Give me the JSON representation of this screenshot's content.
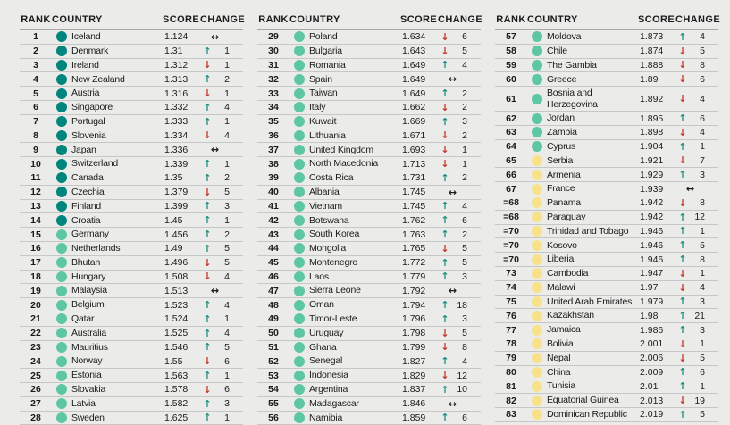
{
  "page": {
    "background_color": "#ebebe9",
    "text_color": "#1b1b1b"
  },
  "table": {
    "headers": {
      "rank": "RANK",
      "country": "COUNTRY",
      "score": "SCORE",
      "change": "CHANGE"
    },
    "tier_colors": {
      "high": "#00857c",
      "medium": "#5dc6a2",
      "low": "#f8e289"
    },
    "change_icons": {
      "up": {
        "name": "up-arrow-icon",
        "glyph": "↑",
        "color": "#1e8e82"
      },
      "down": {
        "name": "down-arrow-icon",
        "glyph": "↓",
        "color": "#c2372c"
      },
      "same": {
        "name": "no-change-icon",
        "glyph": "↔",
        "color": "#1b1b1b"
      }
    }
  },
  "columns": [
    {
      "rows": [
        {
          "rank": "1",
          "country": "Iceland",
          "score": "1.124",
          "tier": "high",
          "change": {
            "dir": "same",
            "value": null
          }
        },
        {
          "rank": "2",
          "country": "Denmark",
          "score": "1.31",
          "tier": "high",
          "change": {
            "dir": "up",
            "value": "1"
          }
        },
        {
          "rank": "3",
          "country": "Ireland",
          "score": "1.312",
          "tier": "high",
          "change": {
            "dir": "down",
            "value": "1"
          }
        },
        {
          "rank": "4",
          "country": "New Zealand",
          "score": "1.313",
          "tier": "high",
          "change": {
            "dir": "up",
            "value": "2"
          }
        },
        {
          "rank": "5",
          "country": "Austria",
          "score": "1.316",
          "tier": "high",
          "change": {
            "dir": "down",
            "value": "1"
          }
        },
        {
          "rank": "6",
          "country": "Singapore",
          "score": "1.332",
          "tier": "high",
          "change": {
            "dir": "up",
            "value": "4"
          }
        },
        {
          "rank": "7",
          "country": "Portugal",
          "score": "1.333",
          "tier": "high",
          "change": {
            "dir": "up",
            "value": "1"
          }
        },
        {
          "rank": "8",
          "country": "Slovenia",
          "score": "1.334",
          "tier": "high",
          "change": {
            "dir": "down",
            "value": "4"
          }
        },
        {
          "rank": "9",
          "country": "Japan",
          "score": "1.336",
          "tier": "high",
          "change": {
            "dir": "same",
            "value": null
          }
        },
        {
          "rank": "10",
          "country": "Switzerland",
          "score": "1.339",
          "tier": "high",
          "change": {
            "dir": "up",
            "value": "1"
          }
        },
        {
          "rank": "11",
          "country": "Canada",
          "score": "1.35",
          "tier": "high",
          "change": {
            "dir": "up",
            "value": "2"
          }
        },
        {
          "rank": "12",
          "country": "Czechia",
          "score": "1.379",
          "tier": "high",
          "change": {
            "dir": "down",
            "value": "5"
          }
        },
        {
          "rank": "13",
          "country": "Finland",
          "score": "1.399",
          "tier": "high",
          "change": {
            "dir": "up",
            "value": "3"
          }
        },
        {
          "rank": "14",
          "country": "Croatia",
          "score": "1.45",
          "tier": "high",
          "change": {
            "dir": "up",
            "value": "1"
          }
        },
        {
          "rank": "15",
          "country": "Germany",
          "score": "1.456",
          "tier": "medium",
          "change": {
            "dir": "up",
            "value": "2"
          }
        },
        {
          "rank": "16",
          "country": "Netherlands",
          "score": "1.49",
          "tier": "medium",
          "change": {
            "dir": "up",
            "value": "5"
          }
        },
        {
          "rank": "17",
          "country": "Bhutan",
          "score": "1.496",
          "tier": "medium",
          "change": {
            "dir": "down",
            "value": "5"
          }
        },
        {
          "rank": "18",
          "country": "Hungary",
          "score": "1.508",
          "tier": "medium",
          "change": {
            "dir": "down",
            "value": "4"
          }
        },
        {
          "rank": "19",
          "country": "Malaysia",
          "score": "1.513",
          "tier": "medium",
          "change": {
            "dir": "same",
            "value": null
          }
        },
        {
          "rank": "20",
          "country": "Belgium",
          "score": "1.523",
          "tier": "medium",
          "change": {
            "dir": "up",
            "value": "4"
          }
        },
        {
          "rank": "21",
          "country": "Qatar",
          "score": "1.524",
          "tier": "medium",
          "change": {
            "dir": "up",
            "value": "1"
          }
        },
        {
          "rank": "22",
          "country": "Australia",
          "score": "1.525",
          "tier": "medium",
          "change": {
            "dir": "up",
            "value": "4"
          }
        },
        {
          "rank": "23",
          "country": "Mauritius",
          "score": "1.546",
          "tier": "medium",
          "change": {
            "dir": "up",
            "value": "5"
          }
        },
        {
          "rank": "24",
          "country": "Norway",
          "score": "1.55",
          "tier": "medium",
          "change": {
            "dir": "down",
            "value": "6"
          }
        },
        {
          "rank": "25",
          "country": "Estonia",
          "score": "1.563",
          "tier": "medium",
          "change": {
            "dir": "up",
            "value": "1"
          }
        },
        {
          "rank": "26",
          "country": "Slovakia",
          "score": "1.578",
          "tier": "medium",
          "change": {
            "dir": "down",
            "value": "6"
          }
        },
        {
          "rank": "27",
          "country": "Latvia",
          "score": "1.582",
          "tier": "medium",
          "change": {
            "dir": "up",
            "value": "3"
          }
        },
        {
          "rank": "28",
          "country": "Sweden",
          "score": "1.625",
          "tier": "medium",
          "change": {
            "dir": "up",
            "value": "1"
          }
        }
      ]
    },
    {
      "rows": [
        {
          "rank": "29",
          "country": "Poland",
          "score": "1.634",
          "tier": "medium",
          "change": {
            "dir": "down",
            "value": "6"
          }
        },
        {
          "rank": "30",
          "country": "Bulgaria",
          "score": "1.643",
          "tier": "medium",
          "change": {
            "dir": "down",
            "value": "5"
          }
        },
        {
          "rank": "31",
          "country": "Romania",
          "score": "1.649",
          "tier": "medium",
          "change": {
            "dir": "up",
            "value": "4"
          }
        },
        {
          "rank": "32",
          "country": "Spain",
          "score": "1.649",
          "tier": "medium",
          "change": {
            "dir": "same",
            "value": null
          }
        },
        {
          "rank": "33",
          "country": "Taiwan",
          "score": "1.649",
          "tier": "medium",
          "change": {
            "dir": "up",
            "value": "2"
          }
        },
        {
          "rank": "34",
          "country": "Italy",
          "score": "1.662",
          "tier": "medium",
          "change": {
            "dir": "down",
            "value": "2"
          }
        },
        {
          "rank": "35",
          "country": "Kuwait",
          "score": "1.669",
          "tier": "medium",
          "change": {
            "dir": "up",
            "value": "3"
          }
        },
        {
          "rank": "36",
          "country": "Lithuania",
          "score": "1.671",
          "tier": "medium",
          "change": {
            "dir": "down",
            "value": "2"
          }
        },
        {
          "rank": "37",
          "country": "United Kingdom",
          "score": "1.693",
          "tier": "medium",
          "change": {
            "dir": "down",
            "value": "1"
          }
        },
        {
          "rank": "38",
          "country": "North Macedonia",
          "score": "1.713",
          "tier": "medium",
          "change": {
            "dir": "down",
            "value": "1"
          }
        },
        {
          "rank": "39",
          "country": "Costa Rica",
          "score": "1.731",
          "tier": "medium",
          "change": {
            "dir": "up",
            "value": "2"
          }
        },
        {
          "rank": "40",
          "country": "Albania",
          "score": "1.745",
          "tier": "medium",
          "change": {
            "dir": "same",
            "value": null
          }
        },
        {
          "rank": "41",
          "country": "Vietnam",
          "score": "1.745",
          "tier": "medium",
          "change": {
            "dir": "up",
            "value": "4"
          }
        },
        {
          "rank": "42",
          "country": "Botswana",
          "score": "1.762",
          "tier": "medium",
          "change": {
            "dir": "up",
            "value": "6"
          }
        },
        {
          "rank": "43",
          "country": "South Korea",
          "score": "1.763",
          "tier": "medium",
          "change": {
            "dir": "up",
            "value": "2"
          }
        },
        {
          "rank": "44",
          "country": "Mongolia",
          "score": "1.765",
          "tier": "medium",
          "change": {
            "dir": "down",
            "value": "5"
          }
        },
        {
          "rank": "45",
          "country": "Montenegro",
          "score": "1.772",
          "tier": "medium",
          "change": {
            "dir": "up",
            "value": "5"
          }
        },
        {
          "rank": "46",
          "country": "Laos",
          "score": "1.779",
          "tier": "medium",
          "change": {
            "dir": "up",
            "value": "3"
          }
        },
        {
          "rank": "47",
          "country": "Sierra Leone",
          "score": "1.792",
          "tier": "medium",
          "change": {
            "dir": "same",
            "value": null
          }
        },
        {
          "rank": "48",
          "country": "Oman",
          "score": "1.794",
          "tier": "medium",
          "change": {
            "dir": "up",
            "value": "18"
          }
        },
        {
          "rank": "49",
          "country": "Timor-Leste",
          "score": "1.796",
          "tier": "medium",
          "change": {
            "dir": "up",
            "value": "3"
          }
        },
        {
          "rank": "50",
          "country": "Uruguay",
          "score": "1.798",
          "tier": "medium",
          "change": {
            "dir": "down",
            "value": "5"
          }
        },
        {
          "rank": "51",
          "country": "Ghana",
          "score": "1.799",
          "tier": "medium",
          "change": {
            "dir": "down",
            "value": "8"
          }
        },
        {
          "rank": "52",
          "country": "Senegal",
          "score": "1.827",
          "tier": "medium",
          "change": {
            "dir": "up",
            "value": "4"
          }
        },
        {
          "rank": "53",
          "country": "Indonesia",
          "score": "1.829",
          "tier": "medium",
          "change": {
            "dir": "down",
            "value": "12"
          }
        },
        {
          "rank": "54",
          "country": "Argentina",
          "score": "1.837",
          "tier": "medium",
          "change": {
            "dir": "up",
            "value": "10"
          }
        },
        {
          "rank": "55",
          "country": "Madagascar",
          "score": "1.846",
          "tier": "medium",
          "change": {
            "dir": "same",
            "value": null
          }
        },
        {
          "rank": "56",
          "country": "Namibia",
          "score": "1.859",
          "tier": "medium",
          "change": {
            "dir": "up",
            "value": "6"
          }
        }
      ]
    },
    {
      "rows": [
        {
          "rank": "57",
          "country": "Moldova",
          "score": "1.873",
          "tier": "medium",
          "change": {
            "dir": "up",
            "value": "4"
          }
        },
        {
          "rank": "58",
          "country": "Chile",
          "score": "1.874",
          "tier": "medium",
          "change": {
            "dir": "down",
            "value": "5"
          }
        },
        {
          "rank": "59",
          "country": "The Gambia",
          "score": "1.888",
          "tier": "medium",
          "change": {
            "dir": "down",
            "value": "8"
          }
        },
        {
          "rank": "60",
          "country": "Greece",
          "score": "1.89",
          "tier": "medium",
          "change": {
            "dir": "down",
            "value": "6"
          }
        },
        {
          "rank": "61",
          "country": "Bosnia and Herzegovina",
          "score": "1.892",
          "tier": "medium",
          "change": {
            "dir": "down",
            "value": "4"
          }
        },
        {
          "rank": "62",
          "country": "Jordan",
          "score": "1.895",
          "tier": "medium",
          "change": {
            "dir": "up",
            "value": "6"
          }
        },
        {
          "rank": "63",
          "country": "Zambia",
          "score": "1.898",
          "tier": "medium",
          "change": {
            "dir": "down",
            "value": "4"
          }
        },
        {
          "rank": "64",
          "country": "Cyprus",
          "score": "1.904",
          "tier": "medium",
          "change": {
            "dir": "up",
            "value": "1"
          }
        },
        {
          "rank": "65",
          "country": "Serbia",
          "score": "1.921",
          "tier": "low",
          "change": {
            "dir": "down",
            "value": "7"
          }
        },
        {
          "rank": "66",
          "country": "Armenia",
          "score": "1.929",
          "tier": "low",
          "change": {
            "dir": "up",
            "value": "3"
          }
        },
        {
          "rank": "67",
          "country": "France",
          "score": "1.939",
          "tier": "low",
          "change": {
            "dir": "same",
            "value": null
          }
        },
        {
          "rank": "=68",
          "country": "Panama",
          "score": "1.942",
          "tier": "low",
          "change": {
            "dir": "down",
            "value": "8"
          }
        },
        {
          "rank": "=68",
          "country": "Paraguay",
          "score": "1.942",
          "tier": "low",
          "change": {
            "dir": "up",
            "value": "12"
          }
        },
        {
          "rank": "=70",
          "country": "Trinidad and Tobago",
          "score": "1.946",
          "tier": "low",
          "change": {
            "dir": "up",
            "value": "1"
          }
        },
        {
          "rank": "=70",
          "country": "Kosovo",
          "score": "1.946",
          "tier": "low",
          "change": {
            "dir": "up",
            "value": "5"
          }
        },
        {
          "rank": "=70",
          "country": "Liberia",
          "score": "1.946",
          "tier": "low",
          "change": {
            "dir": "up",
            "value": "8"
          }
        },
        {
          "rank": "73",
          "country": "Cambodia",
          "score": "1.947",
          "tier": "low",
          "change": {
            "dir": "down",
            "value": "1"
          }
        },
        {
          "rank": "74",
          "country": "Malawi",
          "score": "1.97",
          "tier": "low",
          "change": {
            "dir": "down",
            "value": "4"
          }
        },
        {
          "rank": "75",
          "country": "United Arab Emirates",
          "score": "1.979",
          "tier": "low",
          "change": {
            "dir": "up",
            "value": "3"
          }
        },
        {
          "rank": "76",
          "country": "Kazakhstan",
          "score": "1.98",
          "tier": "low",
          "change": {
            "dir": "up",
            "value": "21"
          }
        },
        {
          "rank": "77",
          "country": "Jamaica",
          "score": "1.986",
          "tier": "low",
          "change": {
            "dir": "up",
            "value": "3"
          }
        },
        {
          "rank": "78",
          "country": "Bolivia",
          "score": "2.001",
          "tier": "low",
          "change": {
            "dir": "down",
            "value": "1"
          }
        },
        {
          "rank": "79",
          "country": "Nepal",
          "score": "2.006",
          "tier": "low",
          "change": {
            "dir": "down",
            "value": "5"
          }
        },
        {
          "rank": "80",
          "country": "China",
          "score": "2.009",
          "tier": "low",
          "change": {
            "dir": "up",
            "value": "6"
          }
        },
        {
          "rank": "81",
          "country": "Tunisia",
          "score": "2.01",
          "tier": "low",
          "change": {
            "dir": "up",
            "value": "1"
          }
        },
        {
          "rank": "82",
          "country": "Equatorial Guinea",
          "score": "2.013",
          "tier": "low",
          "change": {
            "dir": "down",
            "value": "19"
          }
        },
        {
          "rank": "83",
          "country": "Dominican Republic",
          "score": "2.019",
          "tier": "low",
          "change": {
            "dir": "up",
            "value": "5"
          }
        }
      ]
    }
  ]
}
